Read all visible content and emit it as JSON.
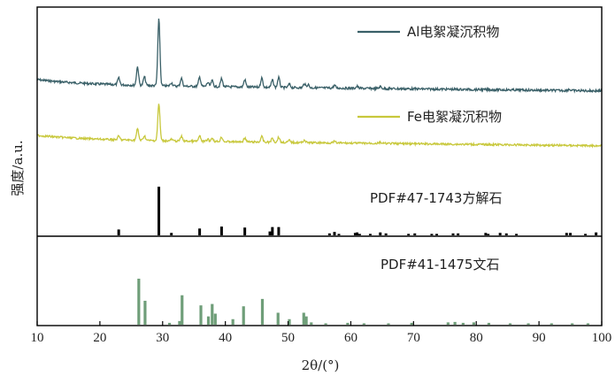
{
  "chart_data": {
    "type": "line",
    "xlabel": "2θ/(°)",
    "ylabel": "强度/a.u.",
    "xlim": [
      10,
      100
    ],
    "xticks": [
      10,
      20,
      30,
      40,
      50,
      60,
      70,
      80,
      90,
      100
    ],
    "series": [
      {
        "name": "Al电絮凝沉积物",
        "color": "#3a6068",
        "peaks": [
          [
            23.0,
            0.1
          ],
          [
            26.0,
            0.28
          ],
          [
            27.1,
            0.13
          ],
          [
            29.4,
            1.0
          ],
          [
            31.4,
            0.05
          ],
          [
            33.0,
            0.12
          ],
          [
            35.9,
            0.14
          ],
          [
            37.2,
            0.06
          ],
          [
            37.9,
            0.09
          ],
          [
            39.4,
            0.12
          ],
          [
            43.1,
            0.11
          ],
          [
            45.8,
            0.14
          ],
          [
            47.5,
            0.11
          ],
          [
            48.5,
            0.15
          ],
          [
            50.2,
            0.05
          ],
          [
            52.6,
            0.06
          ],
          [
            53.2,
            0.05
          ],
          [
            57.4,
            0.04
          ],
          [
            61.0,
            0.03
          ],
          [
            64.7,
            0.03
          ],
          [
            94.8,
            0.02
          ]
        ]
      },
      {
        "name": "Fe电絮凝沉积物",
        "color": "#c8c83c",
        "peaks": [
          [
            23.0,
            0.07
          ],
          [
            26.0,
            0.22
          ],
          [
            27.1,
            0.09
          ],
          [
            29.4,
            0.72
          ],
          [
            31.4,
            0.03
          ],
          [
            33.0,
            0.09
          ],
          [
            35.9,
            0.1
          ],
          [
            37.2,
            0.04
          ],
          [
            37.9,
            0.07
          ],
          [
            39.4,
            0.09
          ],
          [
            43.1,
            0.08
          ],
          [
            45.8,
            0.11
          ],
          [
            47.5,
            0.08
          ],
          [
            48.5,
            0.1
          ],
          [
            50.2,
            0.04
          ],
          [
            52.6,
            0.05
          ],
          [
            57.4,
            0.03
          ],
          [
            64.7,
            0.02
          ]
        ]
      }
    ],
    "references": [
      {
        "name": "PDF#47-1743方解石",
        "color": "#000000",
        "sticks": [
          [
            23.0,
            0.12
          ],
          [
            29.4,
            1.0
          ],
          [
            31.4,
            0.05
          ],
          [
            35.9,
            0.14
          ],
          [
            39.4,
            0.18
          ],
          [
            43.1,
            0.16
          ],
          [
            47.1,
            0.08
          ],
          [
            47.5,
            0.17
          ],
          [
            48.5,
            0.17
          ],
          [
            56.6,
            0.04
          ],
          [
            57.4,
            0.07
          ],
          [
            58.1,
            0.03
          ],
          [
            60.7,
            0.05
          ],
          [
            61.0,
            0.06
          ],
          [
            61.4,
            0.03
          ],
          [
            63.1,
            0.03
          ],
          [
            64.7,
            0.06
          ],
          [
            65.6,
            0.04
          ],
          [
            69.2,
            0.03
          ],
          [
            70.2,
            0.04
          ],
          [
            72.9,
            0.03
          ],
          [
            73.7,
            0.03
          ],
          [
            76.3,
            0.04
          ],
          [
            77.1,
            0.04
          ],
          [
            81.5,
            0.05
          ],
          [
            81.9,
            0.03
          ],
          [
            83.8,
            0.05
          ],
          [
            84.8,
            0.04
          ],
          [
            86.4,
            0.03
          ],
          [
            94.4,
            0.05
          ],
          [
            95.0,
            0.05
          ],
          [
            97.4,
            0.03
          ],
          [
            99.1,
            0.06
          ]
        ]
      },
      {
        "name": "PDF#41-1475文石",
        "color": "#6f9e79",
        "sticks": [
          [
            26.2,
            1.0
          ],
          [
            27.2,
            0.52
          ],
          [
            31.1,
            0.04
          ],
          [
            32.7,
            0.08
          ],
          [
            33.1,
            0.64
          ],
          [
            36.1,
            0.42
          ],
          [
            37.3,
            0.18
          ],
          [
            37.9,
            0.45
          ],
          [
            38.4,
            0.24
          ],
          [
            41.2,
            0.12
          ],
          [
            42.9,
            0.4
          ],
          [
            45.9,
            0.56
          ],
          [
            48.4,
            0.26
          ],
          [
            50.2,
            0.12
          ],
          [
            52.5,
            0.26
          ],
          [
            52.9,
            0.18
          ],
          [
            53.7,
            0.05
          ],
          [
            56.0,
            0.03
          ],
          [
            59.5,
            0.04
          ],
          [
            62.1,
            0.03
          ],
          [
            66.0,
            0.03
          ],
          [
            69.7,
            0.04
          ],
          [
            75.5,
            0.05
          ],
          [
            76.6,
            0.06
          ],
          [
            77.9,
            0.04
          ],
          [
            79.6,
            0.05
          ],
          [
            82.0,
            0.04
          ],
          [
            85.4,
            0.03
          ],
          [
            88.3,
            0.03
          ],
          [
            92.0,
            0.03
          ],
          [
            95.3,
            0.03
          ],
          [
            97.8,
            0.03
          ]
        ]
      }
    ],
    "legend_placement": "top-right",
    "grid": false
  }
}
